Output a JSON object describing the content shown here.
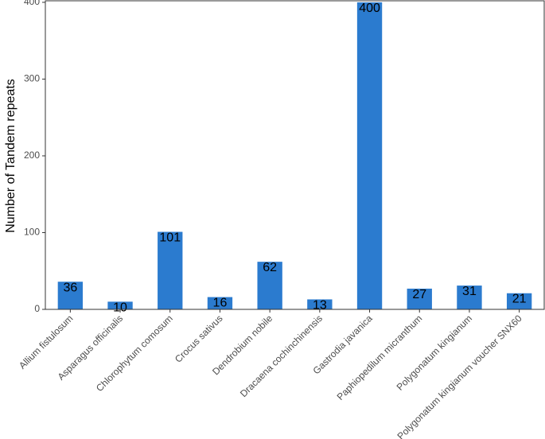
{
  "chart_data": {
    "type": "bar",
    "categories": [
      "Allium fistulosum",
      "Asparagus officinalis",
      "Chlorophytum comosum",
      "Crocus sativus",
      "Dendrobium nobile",
      "Dracaena cochinchinensis",
      "Gastrodia javanica",
      "Paphiopedilum micranthum",
      "Polygonatum kingianum",
      "Polygonatum kingianum voucher SNX60"
    ],
    "values": [
      36,
      10,
      101,
      16,
      62,
      13,
      400,
      27,
      31,
      21
    ],
    "data_labels": [
      "36",
      "10",
      "101",
      "16",
      "62",
      "13",
      "400",
      "27",
      "31",
      "21"
    ],
    "title": "",
    "xlabel": "",
    "ylabel": "Number of Tandem repeats",
    "ylim": [
      0,
      402
    ],
    "yticks": [
      0,
      100,
      200,
      300,
      400
    ],
    "ytick_labels": [
      "0",
      "100",
      "200",
      "300",
      "400"
    ],
    "grid": false,
    "bar_color": "#2b7bcf"
  }
}
